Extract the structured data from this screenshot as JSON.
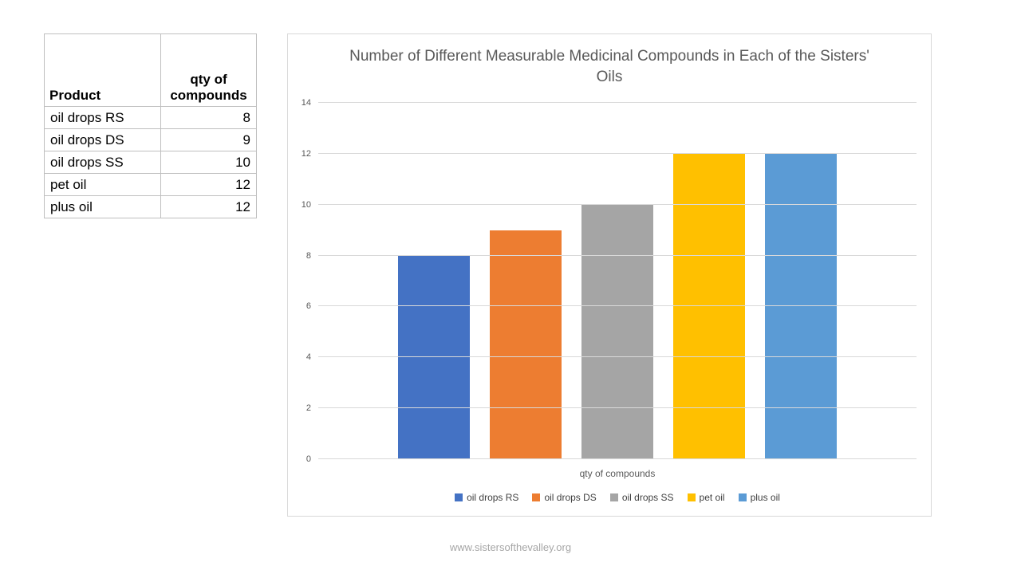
{
  "page": {
    "footer": "www.sistersofthevalley.org"
  },
  "table": {
    "headers": [
      "Product",
      "qty of compounds"
    ],
    "rows": [
      {
        "product": "oil drops RS",
        "qty": "8"
      },
      {
        "product": "oil drops DS",
        "qty": "9"
      },
      {
        "product": "oil drops SS",
        "qty": "10"
      },
      {
        "product": "pet oil",
        "qty": "12"
      },
      {
        "product": "plus oil",
        "qty": "12"
      }
    ]
  },
  "chart_data": {
    "type": "bar",
    "title": "Number of Different Measurable Medicinal Compounds in Each of the Sisters' Oils",
    "xlabel": "qty of compounds",
    "ylabel": "",
    "categories": [
      "oil drops RS",
      "oil drops DS",
      "oil drops SS",
      "pet oil",
      "plus oil"
    ],
    "values": [
      8,
      9,
      10,
      12,
      12
    ],
    "colors": [
      "#4472C4",
      "#ED7D31",
      "#A5A5A5",
      "#FFC000",
      "#5B9BD5"
    ],
    "ylim": [
      0,
      14
    ],
    "yticks": [
      0,
      2,
      4,
      6,
      8,
      10,
      12,
      14
    ],
    "grid": true,
    "legend_position": "bottom"
  }
}
